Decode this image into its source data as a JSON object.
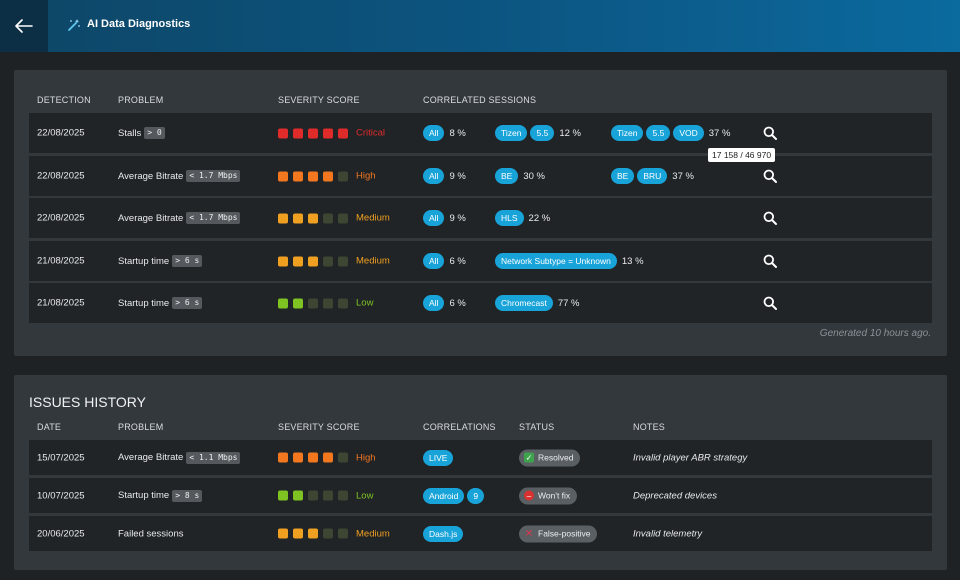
{
  "header": {
    "title": "AI Data Diagnostics"
  },
  "colors": {
    "critical": "#e02b2b",
    "high": "#f2771f",
    "medium": "#f0a020",
    "low": "#7ec321",
    "empty": "#3c4632",
    "accent": "#18a3d9"
  },
  "diagnostics": {
    "columns": {
      "detection": "DETECTION",
      "problem": "PROBLEM",
      "severity": "SEVERITY SCORE",
      "correlated": "CORRELATED SESSIONS"
    },
    "rows": [
      {
        "date": "22/08/2025",
        "problem": "Stalls",
        "code": "> 0",
        "severity_label": "Critical",
        "groups": [
          {
            "tags": [
              "All"
            ],
            "pct": "8 %"
          },
          {
            "tags": [
              "Tizen",
              "5.5"
            ],
            "pct": "12 %"
          },
          {
            "tags": [
              "Tizen",
              "5.5",
              "VOD"
            ],
            "pct": "37 %"
          }
        ]
      },
      {
        "date": "22/08/2025",
        "problem": "Average Bitrate",
        "code": "< 1.7 Mbps",
        "severity_label": "High",
        "groups": [
          {
            "tags": [
              "All"
            ],
            "pct": "9 %"
          },
          {
            "tags": [
              "BE"
            ],
            "pct": "30 %"
          },
          {
            "tags": [
              "BE",
              "BRU"
            ],
            "pct": "37 %"
          }
        ]
      },
      {
        "date": "22/08/2025",
        "problem": "Average Bitrate",
        "code": "< 1.7 Mbps",
        "severity_label": "Medium",
        "groups": [
          {
            "tags": [
              "All"
            ],
            "pct": "9 %"
          },
          {
            "tags": [
              "HLS"
            ],
            "pct": "22 %"
          }
        ]
      },
      {
        "date": "21/08/2025",
        "problem": "Startup time",
        "code": "> 6 s",
        "severity_label": "Medium",
        "groups": [
          {
            "tags": [
              "All"
            ],
            "pct": "6 %"
          },
          {
            "tags": [
              "Network Subtype = Unknown"
            ],
            "pct": "13 %"
          }
        ]
      },
      {
        "date": "21/08/2025",
        "problem": "Startup time",
        "code": "> 6 s",
        "severity_label": "Low",
        "groups": [
          {
            "tags": [
              "All"
            ],
            "pct": "6 %"
          },
          {
            "tags": [
              "Chromecast"
            ],
            "pct": "77 %"
          }
        ]
      }
    ],
    "tooltip": "17 158 / 46 970",
    "generated": "Generated 10 hours ago."
  },
  "history": {
    "title": "ISSUES HISTORY",
    "columns": {
      "date": "DATE",
      "problem": "PROBLEM",
      "severity": "SEVERITY SCORE",
      "correlations": "CORRELATIONS",
      "status": "STATUS",
      "notes": "NOTES"
    },
    "rows": [
      {
        "date": "15/07/2025",
        "problem": "Average Bitrate",
        "code": "< 1.1 Mbps",
        "severity_label": "High",
        "tags": [
          "LIVE"
        ],
        "status": "Resolved",
        "notes": "Invalid player ABR strategy"
      },
      {
        "date": "10/07/2025",
        "problem": "Startup time",
        "code": "> 8 s",
        "severity_label": "Low",
        "tags": [
          "Android",
          "9"
        ],
        "status": "Won't fix",
        "notes": "Deprecated devices"
      },
      {
        "date": "20/06/2025",
        "problem": "Failed sessions",
        "code": "",
        "severity_label": "Medium",
        "tags": [
          "Dash.js"
        ],
        "status": "False-positive",
        "notes": "Invalid telemetry"
      }
    ]
  }
}
